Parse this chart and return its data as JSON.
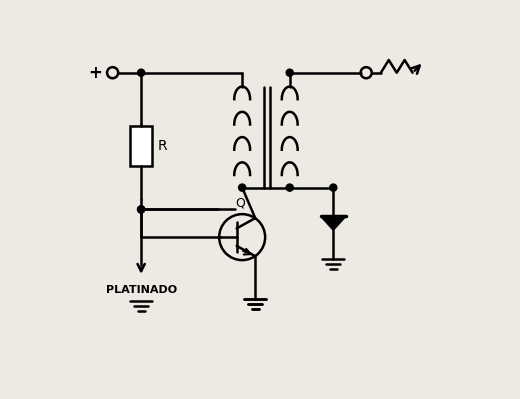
{
  "background_color": "#ede9e3",
  "line_color": "#000000",
  "text_color": "#000000",
  "fig_width": 5.2,
  "fig_height": 3.99,
  "dpi": 100,
  "label_platinado": "PLATINADO",
  "label_r": "R",
  "label_q": "Q",
  "label_plus": "+"
}
